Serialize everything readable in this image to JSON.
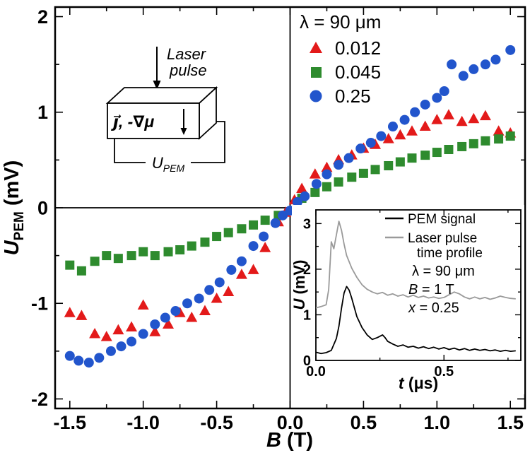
{
  "figure": {
    "background": "#ffffff"
  },
  "chart_data": {
    "main": {
      "type": "scatter",
      "xlabel": {
        "var": "B",
        "rest": " (T)"
      },
      "ylabel": {
        "var": "U",
        "sub": "PEM",
        "rest": " (mV)"
      },
      "xlim": [
        -1.6,
        1.6
      ],
      "ylim": [
        -2.1,
        2.1
      ],
      "x_ticks": {
        "major": [
          -1.5,
          -1.0,
          -0.5,
          0.0,
          0.5,
          1.0,
          1.5
        ],
        "labels": [
          "-1.5",
          "-1.0",
          "-0.5",
          "0.0",
          "0.5",
          "1.0",
          "1.5"
        ],
        "minor_step": 0.25
      },
      "y_ticks": {
        "major": [
          -2,
          -1,
          0,
          1,
          2
        ],
        "labels": [
          "-2",
          "-1",
          "0",
          "1",
          "2"
        ],
        "minor_step": 0.5
      },
      "zero_lines": true,
      "legend": {
        "title": "λ = 90 μm",
        "entries": [
          {
            "label": "0.012",
            "marker": "triangle",
            "color": "#e31a1a"
          },
          {
            "label": "0.045",
            "marker": "square",
            "color": "#2e8b2e"
          },
          {
            "label": "0.25",
            "marker": "circle",
            "color": "#2255cc"
          }
        ]
      },
      "series": [
        {
          "name": "0.012",
          "marker": "triangle",
          "color": "#e31a1a",
          "points": [
            [
              -1.5,
              -1.1
            ],
            [
              -1.42,
              -1.13
            ],
            [
              -1.33,
              -1.32
            ],
            [
              -1.25,
              -1.35
            ],
            [
              -1.17,
              -1.28
            ],
            [
              -1.08,
              -1.25
            ],
            [
              -1.0,
              -1.02
            ],
            [
              -0.92,
              -1.3
            ],
            [
              -0.83,
              -1.22
            ],
            [
              -0.75,
              -1.1
            ],
            [
              -0.67,
              -1.15
            ],
            [
              -0.58,
              -1.08
            ],
            [
              -0.5,
              -0.95
            ],
            [
              -0.42,
              -0.88
            ],
            [
              -0.33,
              -0.7
            ],
            [
              -0.25,
              -0.65
            ],
            [
              -0.17,
              -0.42
            ],
            [
              -0.08,
              -0.15
            ],
            [
              -0.03,
              -0.05
            ],
            [
              0.03,
              0.08
            ],
            [
              0.08,
              0.2
            ],
            [
              0.17,
              0.35
            ],
            [
              0.25,
              0.42
            ],
            [
              0.33,
              0.5
            ],
            [
              0.42,
              0.55
            ],
            [
              0.5,
              0.62
            ],
            [
              0.58,
              0.66
            ],
            [
              0.67,
              0.72
            ],
            [
              0.75,
              0.76
            ],
            [
              0.83,
              0.8
            ],
            [
              0.92,
              0.85
            ],
            [
              1.0,
              0.92
            ],
            [
              1.08,
              0.97
            ],
            [
              1.17,
              0.9
            ],
            [
              1.25,
              0.93
            ],
            [
              1.33,
              0.96
            ],
            [
              1.42,
              0.8
            ],
            [
              1.5,
              0.78
            ]
          ]
        },
        {
          "name": "0.045",
          "marker": "square",
          "color": "#2e8b2e",
          "points": [
            [
              -1.5,
              -0.6
            ],
            [
              -1.42,
              -0.66
            ],
            [
              -1.33,
              -0.56
            ],
            [
              -1.25,
              -0.5
            ],
            [
              -1.17,
              -0.53
            ],
            [
              -1.08,
              -0.5
            ],
            [
              -1.0,
              -0.46
            ],
            [
              -0.92,
              -0.5
            ],
            [
              -0.83,
              -0.46
            ],
            [
              -0.75,
              -0.44
            ],
            [
              -0.67,
              -0.4
            ],
            [
              -0.58,
              -0.36
            ],
            [
              -0.5,
              -0.3
            ],
            [
              -0.42,
              -0.26
            ],
            [
              -0.33,
              -0.22
            ],
            [
              -0.25,
              -0.18
            ],
            [
              -0.17,
              -0.13
            ],
            [
              -0.08,
              -0.08
            ],
            [
              0.08,
              0.1
            ],
            [
              0.17,
              0.16
            ],
            [
              0.25,
              0.22
            ],
            [
              0.33,
              0.27
            ],
            [
              0.42,
              0.32
            ],
            [
              0.5,
              0.36
            ],
            [
              0.58,
              0.4
            ],
            [
              0.67,
              0.44
            ],
            [
              0.75,
              0.48
            ],
            [
              0.83,
              0.52
            ],
            [
              0.92,
              0.55
            ],
            [
              1.0,
              0.58
            ],
            [
              1.08,
              0.61
            ],
            [
              1.17,
              0.64
            ],
            [
              1.25,
              0.67
            ],
            [
              1.33,
              0.7
            ],
            [
              1.42,
              0.72
            ],
            [
              1.5,
              0.75
            ]
          ]
        },
        {
          "name": "0.25",
          "marker": "circle",
          "color": "#2255cc",
          "points": [
            [
              -1.5,
              -1.55
            ],
            [
              -1.44,
              -1.6
            ],
            [
              -1.37,
              -1.62
            ],
            [
              -1.3,
              -1.57
            ],
            [
              -1.22,
              -1.5
            ],
            [
              -1.15,
              -1.45
            ],
            [
              -1.08,
              -1.4
            ],
            [
              -1.0,
              -1.32
            ],
            [
              -0.92,
              -1.22
            ],
            [
              -0.85,
              -1.15
            ],
            [
              -0.78,
              -1.08
            ],
            [
              -0.7,
              -1.0
            ],
            [
              -0.62,
              -0.95
            ],
            [
              -0.55,
              -0.86
            ],
            [
              -0.48,
              -0.78
            ],
            [
              -0.4,
              -0.65
            ],
            [
              -0.33,
              -0.56
            ],
            [
              -0.25,
              -0.4
            ],
            [
              -0.18,
              -0.3
            ],
            [
              -0.1,
              -0.16
            ],
            [
              -0.05,
              -0.08
            ],
            [
              0.0,
              -0.03
            ],
            [
              0.05,
              0.06
            ],
            [
              0.1,
              0.12
            ],
            [
              0.18,
              0.25
            ],
            [
              0.25,
              0.35
            ],
            [
              0.33,
              0.45
            ],
            [
              0.4,
              0.52
            ],
            [
              0.48,
              0.62
            ],
            [
              0.55,
              0.68
            ],
            [
              0.62,
              0.75
            ],
            [
              0.7,
              0.85
            ],
            [
              0.78,
              0.92
            ],
            [
              0.85,
              1.0
            ],
            [
              0.92,
              1.08
            ],
            [
              1.0,
              1.15
            ],
            [
              1.05,
              1.22
            ],
            [
              1.1,
              1.5
            ],
            [
              1.18,
              1.38
            ],
            [
              1.25,
              1.45
            ],
            [
              1.33,
              1.5
            ],
            [
              1.4,
              1.55
            ],
            [
              1.5,
              1.65
            ]
          ]
        }
      ]
    },
    "inset_plot": {
      "type": "line",
      "xlabel": {
        "var": "t",
        "rest": " (μs)"
      },
      "ylabel": {
        "var": "U",
        "rest": " (mV)"
      },
      "xlim": [
        0,
        0.8
      ],
      "ylim": [
        0,
        3.3
      ],
      "x_ticks": {
        "major": [
          0.0,
          0.5
        ],
        "labels": [
          "0.0",
          "0.5"
        ],
        "minor_step": 0.25
      },
      "y_ticks": {
        "major": [
          0,
          1,
          2,
          3
        ],
        "labels": [
          "0",
          "1",
          "2",
          "3"
        ],
        "minor_step": 0.5
      },
      "legend": [
        {
          "label": "PEM signal"
        },
        {
          "label": "Laser pulse",
          "label2": "time profile"
        }
      ],
      "annotations": [
        {
          "var": "",
          "text": "λ = 90 μm"
        },
        {
          "var": "B",
          "text": " = 1 T"
        },
        {
          "var": "x",
          "text": " = 0.25"
        }
      ],
      "series": [
        {
          "name": "PEM signal",
          "color": "#000000",
          "points": [
            [
              0.0,
              0.18
            ],
            [
              0.02,
              0.15
            ],
            [
              0.04,
              0.17
            ],
            [
              0.06,
              0.22
            ],
            [
              0.08,
              0.48
            ],
            [
              0.09,
              0.75
            ],
            [
              0.1,
              1.15
            ],
            [
              0.11,
              1.48
            ],
            [
              0.12,
              1.62
            ],
            [
              0.13,
              1.54
            ],
            [
              0.14,
              1.36
            ],
            [
              0.15,
              1.16
            ],
            [
              0.16,
              0.96
            ],
            [
              0.18,
              0.72
            ],
            [
              0.2,
              0.56
            ],
            [
              0.22,
              0.46
            ],
            [
              0.24,
              0.5
            ],
            [
              0.26,
              0.56
            ],
            [
              0.27,
              0.5
            ],
            [
              0.28,
              0.42
            ],
            [
              0.3,
              0.36
            ],
            [
              0.32,
              0.31
            ],
            [
              0.34,
              0.34
            ],
            [
              0.36,
              0.29
            ],
            [
              0.38,
              0.31
            ],
            [
              0.4,
              0.27
            ],
            [
              0.42,
              0.3
            ],
            [
              0.44,
              0.26
            ],
            [
              0.46,
              0.29
            ],
            [
              0.48,
              0.25
            ],
            [
              0.5,
              0.28
            ],
            [
              0.52,
              0.24
            ],
            [
              0.54,
              0.27
            ],
            [
              0.56,
              0.23
            ],
            [
              0.58,
              0.26
            ],
            [
              0.6,
              0.22
            ],
            [
              0.62,
              0.25
            ],
            [
              0.64,
              0.22
            ],
            [
              0.66,
              0.24
            ],
            [
              0.68,
              0.21
            ],
            [
              0.7,
              0.23
            ],
            [
              0.72,
              0.2
            ],
            [
              0.74,
              0.22
            ],
            [
              0.76,
              0.2
            ],
            [
              0.78,
              0.21
            ]
          ]
        },
        {
          "name": "Laser pulse time profile",
          "color": "#9a9a9a",
          "points": [
            [
              0.0,
              1.15
            ],
            [
              0.02,
              1.18
            ],
            [
              0.04,
              1.22
            ],
            [
              0.05,
              1.55
            ],
            [
              0.06,
              2.6
            ],
            [
              0.07,
              2.45
            ],
            [
              0.08,
              2.75
            ],
            [
              0.09,
              3.05
            ],
            [
              0.1,
              2.85
            ],
            [
              0.11,
              2.55
            ],
            [
              0.12,
              2.3
            ],
            [
              0.14,
              2.02
            ],
            [
              0.16,
              1.82
            ],
            [
              0.18,
              1.66
            ],
            [
              0.2,
              1.56
            ],
            [
              0.22,
              1.5
            ],
            [
              0.24,
              1.46
            ],
            [
              0.26,
              1.49
            ],
            [
              0.28,
              1.43
            ],
            [
              0.3,
              1.46
            ],
            [
              0.32,
              1.41
            ],
            [
              0.34,
              1.44
            ],
            [
              0.36,
              1.39
            ],
            [
              0.38,
              1.43
            ],
            [
              0.4,
              1.38
            ],
            [
              0.42,
              1.41
            ],
            [
              0.44,
              1.37
            ],
            [
              0.46,
              1.39
            ],
            [
              0.48,
              1.36
            ],
            [
              0.5,
              1.38
            ],
            [
              0.52,
              1.44
            ],
            [
              0.54,
              1.5
            ],
            [
              0.56,
              1.46
            ],
            [
              0.58,
              1.39
            ],
            [
              0.6,
              1.35
            ],
            [
              0.62,
              1.39
            ],
            [
              0.64,
              1.35
            ],
            [
              0.66,
              1.38
            ],
            [
              0.68,
              1.34
            ],
            [
              0.7,
              1.37
            ],
            [
              0.72,
              1.41
            ],
            [
              0.74,
              1.38
            ],
            [
              0.76,
              1.36
            ],
            [
              0.78,
              1.35
            ]
          ]
        }
      ]
    },
    "schematic": {
      "laser_label": [
        "Laser",
        "pulse"
      ],
      "box_label": "j⃗, -∇μ",
      "voltage_label": {
        "var": "U",
        "sub": "PEM"
      }
    }
  }
}
